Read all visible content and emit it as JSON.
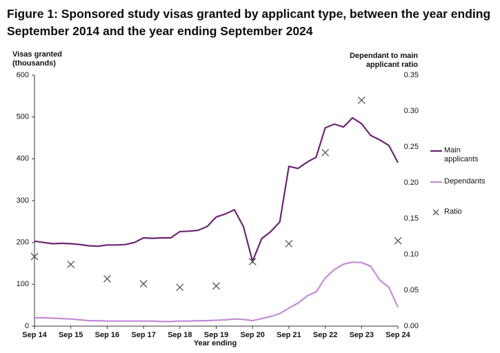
{
  "chart_data": {
    "type": "line",
    "title": "Figure 1: Sponsored study visas granted by applicant type, between the year ending September 2014 and the year ending September 2024",
    "y_label": [
      "Visas granted",
      "(thousands)"
    ],
    "y2_label": [
      "Dependant to main",
      "applicant ratio"
    ],
    "x_label": "Year ending",
    "categories": [
      "Sep 14",
      null,
      null,
      null,
      "Sep 15",
      null,
      null,
      null,
      "Sep 16",
      null,
      null,
      null,
      "Sep 17",
      null,
      null,
      null,
      "Sep 18",
      null,
      null,
      null,
      "Sep 19",
      null,
      null,
      null,
      "Sep 20",
      null,
      null,
      null,
      "Sep 21",
      null,
      null,
      null,
      "Sep 22",
      null,
      null,
      null,
      "Sep 23",
      null,
      null,
      null,
      "Sep 24"
    ],
    "ylim": [
      0,
      600
    ],
    "yticks": [
      0,
      100,
      200,
      300,
      400,
      500,
      600
    ],
    "y2lim": [
      0,
      0.35
    ],
    "y2ticks": [
      {
        "value": 0,
        "label": "0.00"
      },
      0.05,
      {
        "value": 0.1,
        "label": "0.10"
      },
      0.15,
      {
        "value": 0.2,
        "label": "0.20"
      },
      0.25,
      {
        "value": 0.3,
        "label": "0.30"
      },
      0.35
    ],
    "series": [
      {
        "name": "Main applicants",
        "color": "#6b2370",
        "style": "line",
        "values": [
          203,
          200,
          197,
          198,
          197,
          195,
          192,
          191,
          194,
          194,
          195,
          200,
          211,
          210,
          211,
          211,
          226,
          227,
          229,
          238,
          261,
          268,
          278,
          238,
          155,
          209,
          226,
          249,
          382,
          377,
          392,
          404,
          474,
          483,
          476,
          498,
          484,
          456,
          445,
          432,
          391
        ]
      },
      {
        "name": "Dependants",
        "color": "#c48ad4",
        "style": "line",
        "values": [
          20,
          20,
          19,
          18,
          17,
          15,
          13,
          13,
          12,
          12,
          12,
          12,
          12,
          12,
          11,
          11,
          12,
          12,
          13,
          13,
          14,
          15,
          17,
          16,
          13,
          18,
          23,
          30,
          43,
          55,
          72,
          82,
          115,
          135,
          148,
          153,
          152,
          143,
          110,
          93,
          45
        ]
      },
      {
        "name": "Ratio",
        "color": "#555555",
        "style": "marker",
        "axis": "y2",
        "values": [
          0.097,
          null,
          null,
          null,
          0.086,
          null,
          null,
          null,
          0.066,
          null,
          null,
          null,
          0.059,
          null,
          null,
          null,
          0.054,
          null,
          null,
          null,
          0.056,
          null,
          null,
          null,
          0.09,
          null,
          null,
          null,
          0.115,
          null,
          null,
          null,
          0.242,
          null,
          null,
          null,
          0.315,
          null,
          null,
          null,
          0.119
        ]
      }
    ]
  }
}
